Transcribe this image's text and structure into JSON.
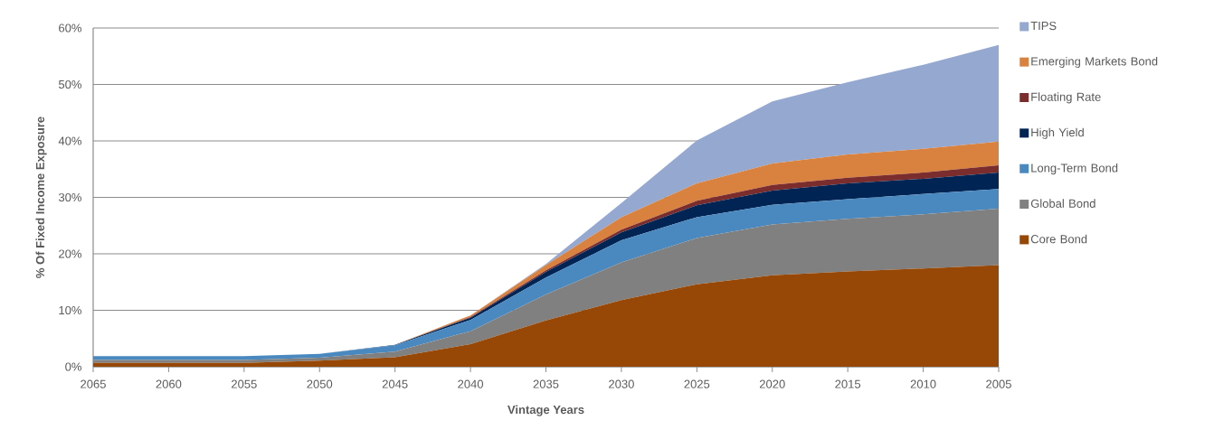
{
  "chart_data": {
    "type": "area",
    "stacked": true,
    "xlabel": "Vintage Years",
    "ylabel": "% Of Fixed Income Exposure",
    "categories": [
      "2065",
      "2060",
      "2055",
      "2050",
      "2045",
      "2040",
      "2035",
      "2030",
      "2025",
      "2020",
      "2015",
      "2010",
      "2005"
    ],
    "ylim": [
      0,
      60
    ],
    "yticks": [
      {
        "value": 0,
        "label": "0%"
      },
      {
        "value": 10,
        "label": "10%"
      },
      {
        "value": 20,
        "label": "20%"
      },
      {
        "value": 30,
        "label": "30%"
      },
      {
        "value": 40,
        "label": "40%"
      },
      {
        "value": 50,
        "label": "50%"
      },
      {
        "value": 60,
        "label": "60%"
      }
    ],
    "grid": "y",
    "legend": "right",
    "series": [
      {
        "name": "Core Bond",
        "color": "#974706",
        "values": [
          0.7,
          0.7,
          0.7,
          1.1,
          1.7,
          4.0,
          8.2,
          11.8,
          14.6,
          16.2,
          16.9,
          17.4,
          18.0
        ]
      },
      {
        "name": "Global Bond",
        "color": "#808080",
        "values": [
          0.5,
          0.5,
          0.5,
          0.5,
          1.0,
          2.3,
          4.6,
          6.7,
          8.2,
          9.0,
          9.3,
          9.6,
          10.0
        ]
      },
      {
        "name": "Long-Term Bond",
        "color": "#4a89c0",
        "values": [
          0.7,
          0.7,
          0.7,
          0.7,
          1.1,
          2.0,
          3.0,
          3.9,
          3.7,
          3.5,
          3.5,
          3.6,
          3.5
        ]
      },
      {
        "name": "High Yield",
        "color": "#002554",
        "values": [
          0,
          0,
          0,
          0,
          0.1,
          0.4,
          1.0,
          1.4,
          2.1,
          2.5,
          2.8,
          2.7,
          2.9
        ]
      },
      {
        "name": "Floating Rate",
        "color": "#7b2c2c",
        "values": [
          0,
          0,
          0,
          0,
          0,
          0.1,
          0.3,
          0.5,
          0.8,
          1.0,
          1.0,
          1.1,
          1.3
        ]
      },
      {
        "name": "Emerging Markets Bond",
        "color": "#d9823f",
        "values": [
          0,
          0,
          0,
          0,
          0,
          0.3,
          0.9,
          2.2,
          3.1,
          3.8,
          4.1,
          4.2,
          4.2
        ]
      },
      {
        "name": "TIPS",
        "color": "#95a8cf",
        "values": [
          0,
          0,
          0,
          0,
          0,
          0,
          0.2,
          2.5,
          7.6,
          11.0,
          12.8,
          14.9,
          17.1
        ]
      }
    ]
  }
}
